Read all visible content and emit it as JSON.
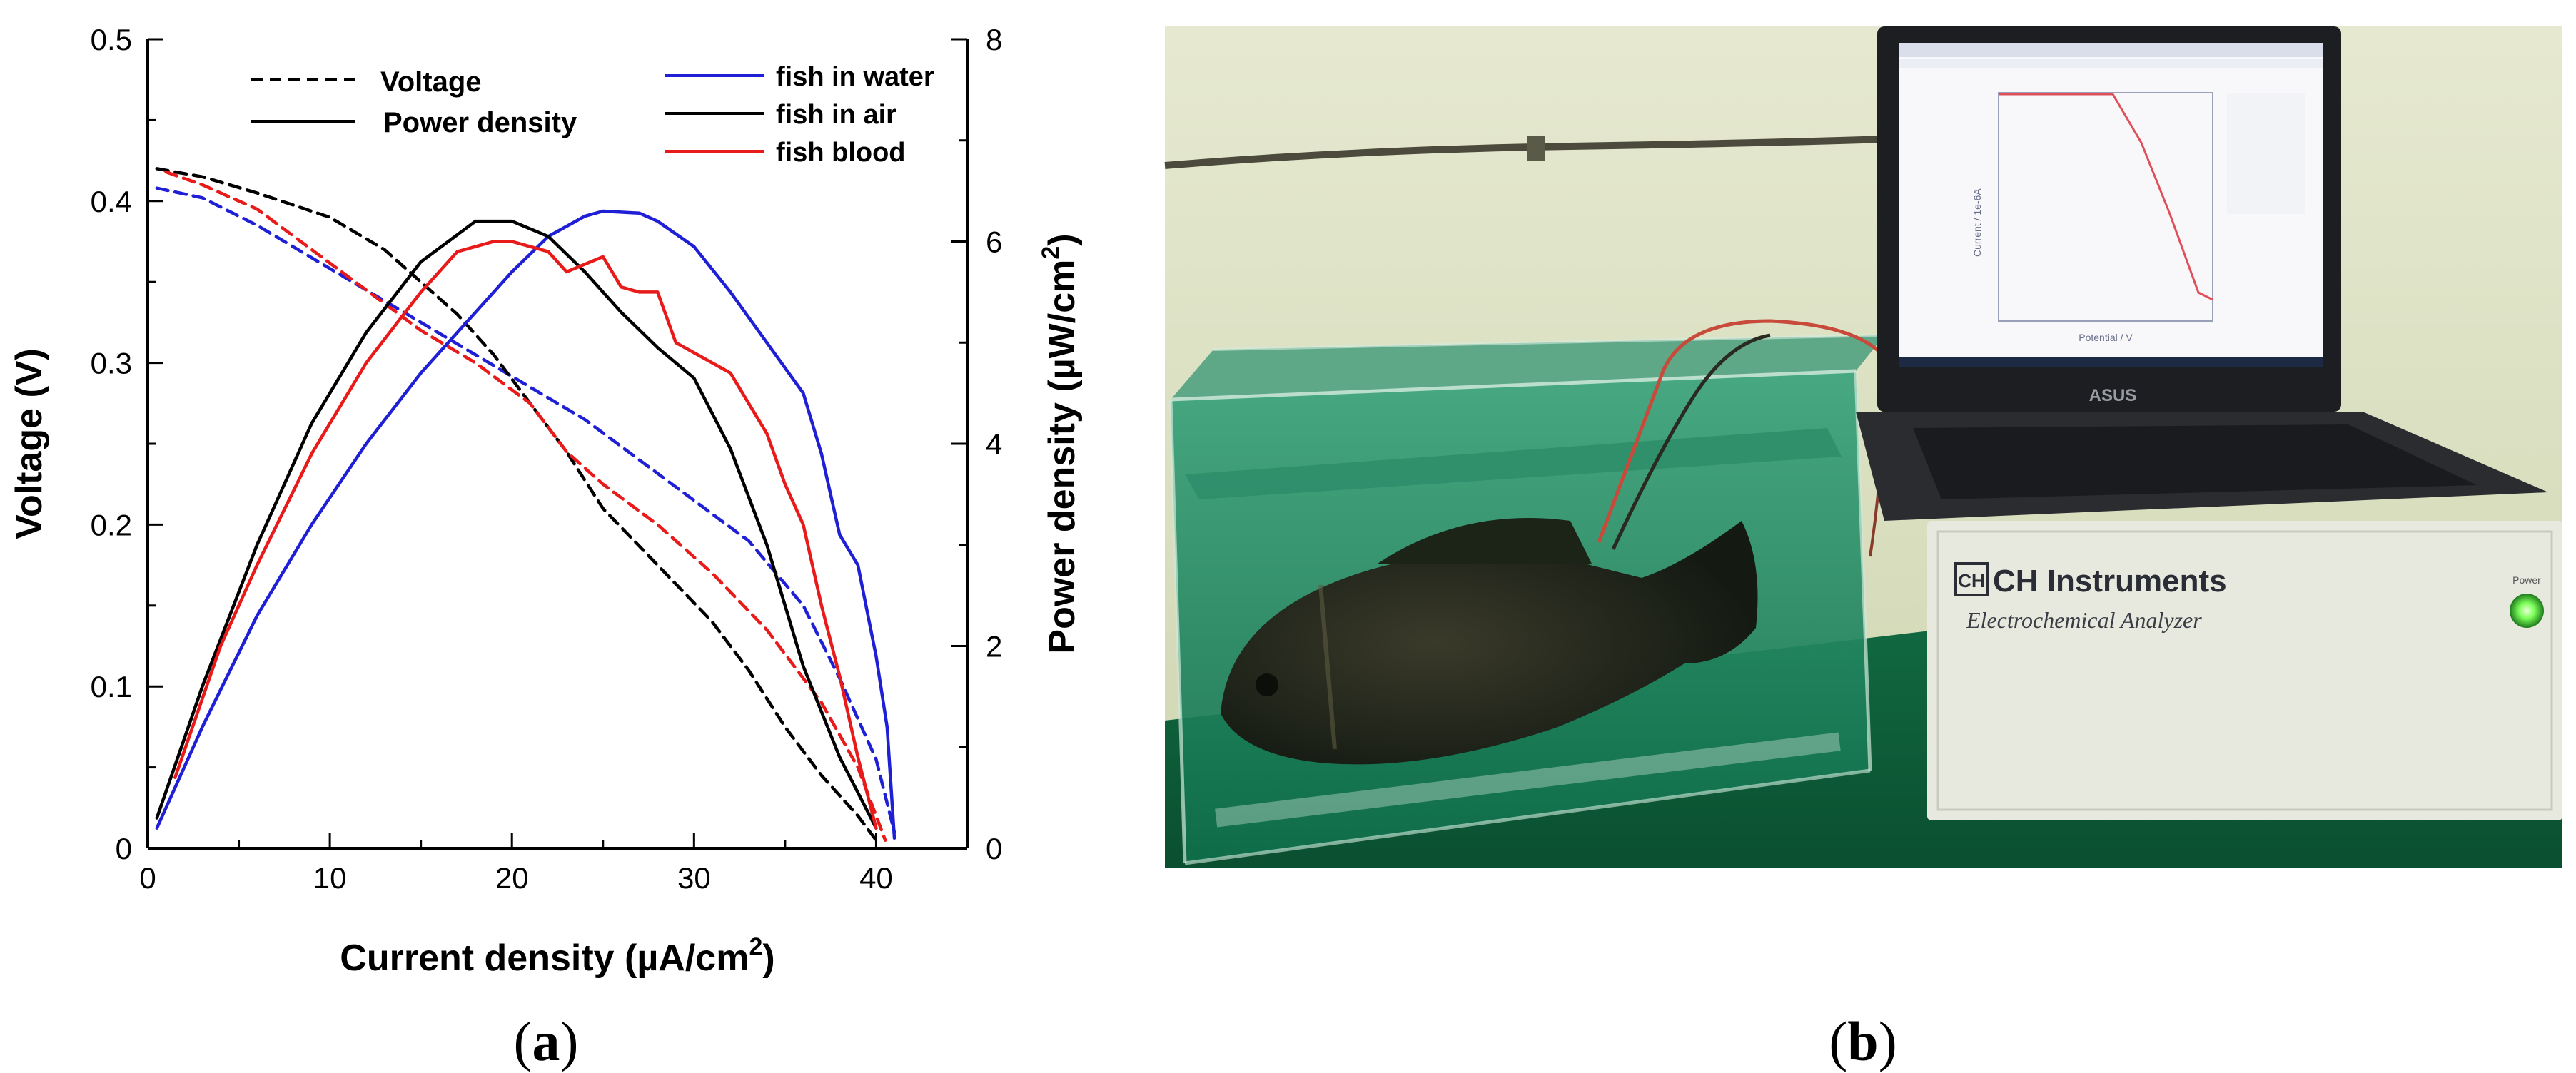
{
  "chart_data": {
    "type": "line",
    "x_label": "Current density (µA/cm²)",
    "x_label_parts": {
      "base": "Current density (µA/cm",
      "sup": "2",
      "tail": ")"
    },
    "y_left_label": "Voltage (V)",
    "y_right_label": "Power density (µW/cm²)",
    "y_right_label_parts": {
      "base": "Power density (µW/cm",
      "sup": "2",
      "tail": ")"
    },
    "xlim": [
      0,
      45
    ],
    "ylim_left": [
      0,
      0.5
    ],
    "ylim_right": [
      0,
      8
    ],
    "x_ticks": [
      0,
      10,
      20,
      30,
      40
    ],
    "x_tick_labels": [
      "0",
      "10",
      "20",
      "30",
      "40"
    ],
    "y_left_ticks": [
      0,
      0.1,
      0.2,
      0.3,
      0.4,
      0.5
    ],
    "y_left_tick_labels": [
      "0",
      "0.1",
      "0.2",
      "0.3",
      "0.4",
      "0.5"
    ],
    "y_right_ticks": [
      0,
      2,
      4,
      6,
      8
    ],
    "y_right_tick_labels": [
      "0",
      "2",
      "4",
      "6",
      "8"
    ],
    "style_legend": [
      {
        "label": "Voltage",
        "style": "dashed"
      },
      {
        "label": "Power density",
        "style": "solid"
      }
    ],
    "color_legend": [
      {
        "label": "fish in water",
        "color": "#1f1fd6"
      },
      {
        "label": "fish in air",
        "color": "#000000"
      },
      {
        "label": "fish blood",
        "color": "#e81a1a"
      }
    ],
    "series": [
      {
        "name": "fish in water",
        "kind": "voltage",
        "axis": "left",
        "color": "#1f1fd6",
        "dash": true,
        "x": [
          0.5,
          3,
          6,
          9,
          12,
          15,
          18,
          21,
          24,
          27,
          30,
          33,
          36,
          38,
          40,
          41
        ],
        "y": [
          0.408,
          0.402,
          0.385,
          0.365,
          0.345,
          0.325,
          0.305,
          0.285,
          0.265,
          0.24,
          0.215,
          0.19,
          0.15,
          0.105,
          0.055,
          0.01
        ]
      },
      {
        "name": "fish in air",
        "kind": "voltage",
        "axis": "left",
        "color": "#000000",
        "dash": true,
        "x": [
          0.5,
          3,
          6,
          10,
          13,
          15,
          17,
          19,
          21,
          23,
          25,
          28,
          31,
          33,
          35,
          37,
          39,
          40
        ],
        "y": [
          0.42,
          0.415,
          0.405,
          0.39,
          0.37,
          0.35,
          0.33,
          0.305,
          0.275,
          0.245,
          0.21,
          0.175,
          0.14,
          0.11,
          0.075,
          0.045,
          0.02,
          0.005
        ]
      },
      {
        "name": "fish blood",
        "kind": "voltage",
        "axis": "left",
        "color": "#e81a1a",
        "dash": true,
        "x": [
          1,
          3,
          6,
          9,
          12,
          15,
          18,
          21,
          23,
          25,
          28,
          31,
          34,
          37,
          39,
          40.5
        ],
        "y": [
          0.418,
          0.41,
          0.395,
          0.37,
          0.345,
          0.32,
          0.3,
          0.275,
          0.245,
          0.225,
          0.2,
          0.17,
          0.135,
          0.09,
          0.05,
          0.005
        ]
      },
      {
        "name": "fish in water",
        "kind": "power",
        "axis": "right",
        "color": "#1f1fd6",
        "dash": false,
        "x": [
          0.5,
          3,
          6,
          9,
          12,
          15,
          18,
          20,
          22,
          24,
          25,
          27,
          28,
          30,
          32,
          34,
          36,
          37,
          38,
          39,
          40,
          40.6,
          41
        ],
        "y": [
          0.2,
          1.2,
          2.3,
          3.2,
          4.0,
          4.7,
          5.3,
          5.7,
          6.05,
          6.25,
          6.3,
          6.28,
          6.2,
          5.95,
          5.5,
          5.0,
          4.5,
          3.9,
          3.1,
          2.8,
          1.9,
          1.2,
          0.1
        ]
      },
      {
        "name": "fish in air",
        "kind": "power",
        "axis": "right",
        "color": "#000000",
        "dash": false,
        "x": [
          0.5,
          3,
          6,
          9,
          12,
          15,
          18,
          20,
          22,
          24,
          26,
          28,
          30,
          32,
          34,
          36,
          38,
          40
        ],
        "y": [
          0.3,
          1.6,
          3.0,
          4.2,
          5.1,
          5.8,
          6.2,
          6.2,
          6.05,
          5.7,
          5.3,
          4.95,
          4.65,
          3.95,
          3.0,
          1.8,
          0.9,
          0.2
        ]
      },
      {
        "name": "fish blood",
        "kind": "power",
        "axis": "right",
        "color": "#e81a1a",
        "dash": false,
        "x": [
          1.5,
          4,
          6,
          9,
          12,
          15,
          17,
          19,
          20,
          22,
          23,
          25,
          26,
          27,
          28,
          29,
          30,
          32,
          34,
          35,
          36,
          37,
          38,
          39,
          40
        ],
        "y": [
          0.7,
          2.0,
          2.8,
          3.9,
          4.8,
          5.5,
          5.9,
          6.0,
          6.0,
          5.9,
          5.7,
          5.85,
          5.55,
          5.5,
          5.5,
          5.0,
          4.9,
          4.7,
          4.1,
          3.6,
          3.2,
          2.4,
          1.7,
          0.9,
          0.2
        ]
      }
    ]
  },
  "panel_a_label": {
    "open": "(",
    "letter": "a",
    "close": ")"
  },
  "panel_b_label": {
    "open": "(",
    "letter": "b",
    "close": ")"
  },
  "photo": {
    "brand": "CH Instruments",
    "brand_logo": "CH",
    "subtitle": "Electrochemical Analyzer",
    "power_label": "Power",
    "laptop_brand": "ASUS",
    "screen_y_axis": "Current / 1e-6A",
    "screen_x_axis": "Potential / V",
    "colors": {
      "wall": "#dfe4c9",
      "water": "#1f8f68",
      "table": "#0b5a36",
      "instrument": "#e8e9de",
      "led": "#7cff5a"
    }
  }
}
